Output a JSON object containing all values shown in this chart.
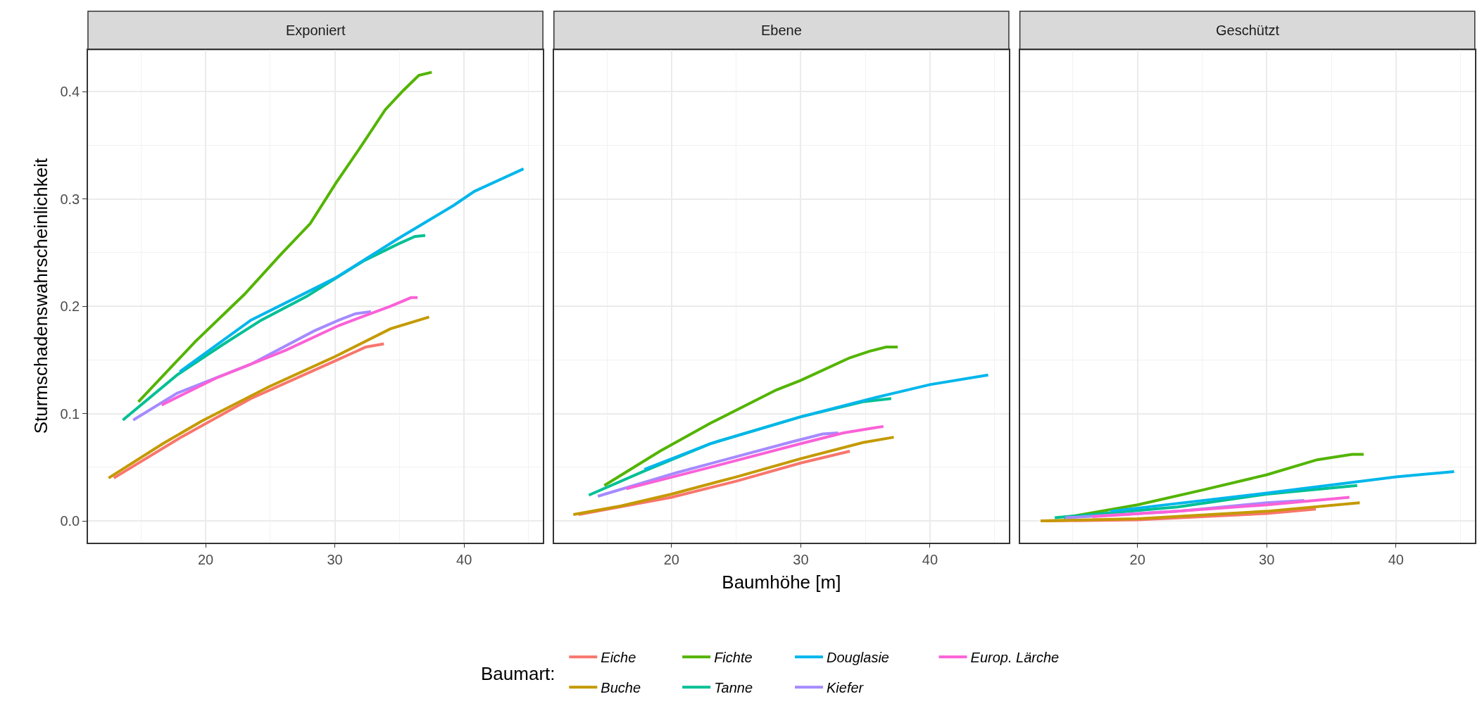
{
  "chart_data": [
    {
      "type": "line",
      "title": "Exponiert",
      "ylabel": "Sturmschadenswahrscheinlichkeit",
      "legend_title": "Baumart:",
      "legend": "bottom",
      "grid": true,
      "xlim": [
        10.9,
        46.1
      ],
      "ylim": [
        -0.02,
        0.439
      ],
      "xticks": [
        20,
        30,
        40
      ],
      "yticks": [
        {
          "value": 0,
          "label": "0.0"
        },
        0.1,
        0.2,
        0.3,
        0.4
      ],
      "line_style": "solid",
      "series": [
        {
          "name": "Eiche",
          "color": "#f8766d",
          "x": [
            12.9,
            18.1,
            23.5,
            30.0,
            32.4,
            33.8
          ],
          "values": [
            0.04,
            0.078,
            0.114,
            0.149,
            0.162,
            0.165
          ]
        },
        {
          "name": "Buche",
          "color": "#c49a00",
          "x": [
            12.5,
            16.7,
            19.7,
            24.9,
            30.0,
            34.3,
            37.3
          ],
          "values": [
            0.04,
            0.072,
            0.093,
            0.125,
            0.153,
            0.179,
            0.19
          ]
        },
        {
          "name": "Fichte",
          "color": "#53b400",
          "x": [
            14.8,
            19.2,
            23.0,
            25.8,
            28.1,
            30.1,
            32.2,
            33.9,
            35.3,
            36.5,
            37.5
          ],
          "values": [
            0.111,
            0.167,
            0.211,
            0.248,
            0.277,
            0.315,
            0.352,
            0.383,
            0.401,
            0.415,
            0.418
          ]
        },
        {
          "name": "Tanne",
          "color": "#00c094",
          "x": [
            13.6,
            17.8,
            21.3,
            24.3,
            27.8,
            32.2,
            34.9,
            36.2,
            37.0
          ],
          "values": [
            0.094,
            0.136,
            0.164,
            0.187,
            0.209,
            0.242,
            0.258,
            0.265,
            0.266
          ]
        },
        {
          "name": "Douglasie",
          "color": "#00b6eb",
          "x": [
            18.0,
            23.5,
            30.0,
            34.9,
            39.2,
            40.8,
            44.6
          ],
          "values": [
            0.139,
            0.187,
            0.226,
            0.263,
            0.294,
            0.307,
            0.328
          ]
        },
        {
          "name": "Kiefer",
          "color": "#a58aff",
          "x": [
            14.4,
            17.8,
            23.5,
            28.4,
            30.3,
            31.6,
            32.8
          ],
          "values": [
            0.094,
            0.119,
            0.146,
            0.177,
            0.187,
            0.193,
            0.195
          ]
        },
        {
          "name": "Europ. Lärche",
          "color": "#fb61d7",
          "x": [
            16.6,
            20.8,
            26.2,
            30.3,
            34.3,
            35.9,
            36.4
          ],
          "values": [
            0.108,
            0.133,
            0.159,
            0.182,
            0.2,
            0.208,
            0.208
          ]
        }
      ]
    },
    {
      "type": "line",
      "title": "Ebene",
      "xlabel": "Baumhöhe [m]",
      "grid": true,
      "tick_labels": "x",
      "xlim": [
        10.9,
        46.1
      ],
      "ylim": [
        -0.02,
        0.439
      ],
      "xticks": [
        20,
        30,
        40
      ],
      "yticks": [
        0,
        0.1,
        0.2,
        0.3,
        0.4
      ],
      "line_style": "solid",
      "series": [
        {
          "color": "#f8766d",
          "x": [
            12.8,
            20.0,
            25.0,
            30.0,
            33.8
          ],
          "values": [
            0.006,
            0.022,
            0.037,
            0.054,
            0.065
          ]
        },
        {
          "color": "#c49a00",
          "x": [
            12.4,
            16.1,
            20.0,
            25.0,
            30.0,
            34.8,
            37.2
          ],
          "values": [
            0.006,
            0.014,
            0.025,
            0.041,
            0.058,
            0.073,
            0.078
          ]
        },
        {
          "color": "#53b400",
          "x": [
            14.8,
            19.1,
            23.0,
            28.1,
            30.0,
            33.8,
            35.3,
            36.6,
            37.5
          ],
          "values": [
            0.033,
            0.065,
            0.091,
            0.122,
            0.131,
            0.152,
            0.158,
            0.162,
            0.162
          ]
        },
        {
          "color": "#00c094",
          "x": [
            13.6,
            17.8,
            23.0,
            30.0,
            34.8,
            37.0
          ],
          "values": [
            0.024,
            0.046,
            0.072,
            0.097,
            0.111,
            0.114
          ]
        },
        {
          "color": "#00b6eb",
          "x": [
            17.9,
            23.0,
            30.0,
            35.8,
            40.0,
            44.5
          ],
          "values": [
            0.048,
            0.072,
            0.097,
            0.115,
            0.127,
            0.136
          ]
        },
        {
          "color": "#a58aff",
          "x": [
            14.3,
            20.4,
            29.4,
            31.7,
            32.9
          ],
          "values": [
            0.023,
            0.045,
            0.074,
            0.081,
            0.082
          ]
        },
        {
          "color": "#fb61d7",
          "x": [
            16.5,
            23.0,
            30.0,
            33.3,
            35.8,
            36.4
          ],
          "values": [
            0.03,
            0.05,
            0.072,
            0.082,
            0.087,
            0.088
          ]
        }
      ]
    },
    {
      "type": "line",
      "title": "Geschützt",
      "grid": true,
      "tick_labels": "x",
      "xlim": [
        10.9,
        46.1
      ],
      "ylim": [
        -0.02,
        0.439
      ],
      "xticks": [
        20,
        30,
        40
      ],
      "yticks": [
        0,
        0.1,
        0.2,
        0.3,
        0.4
      ],
      "line_style": "solid",
      "series": [
        {
          "color": "#f8766d",
          "x": [
            12.8,
            20.0,
            30.0,
            33.8
          ],
          "values": [
            0.0,
            0.001,
            0.007,
            0.011
          ]
        },
        {
          "color": "#c49a00",
          "x": [
            12.5,
            20.0,
            30.0,
            37.2
          ],
          "values": [
            0.0,
            0.002,
            0.009,
            0.017
          ]
        },
        {
          "color": "#53b400",
          "x": [
            14.3,
            20.0,
            25.1,
            30.0,
            33.9,
            36.6,
            37.5
          ],
          "values": [
            0.003,
            0.015,
            0.029,
            0.043,
            0.057,
            0.062,
            0.062
          ]
        },
        {
          "color": "#00c094",
          "x": [
            13.6,
            23.1,
            30.0,
            37.0
          ],
          "values": [
            0.003,
            0.013,
            0.025,
            0.033
          ]
        },
        {
          "color": "#00b6eb",
          "x": [
            17.9,
            30.0,
            40.0,
            44.5
          ],
          "values": [
            0.009,
            0.026,
            0.041,
            0.046
          ]
        },
        {
          "color": "#a58aff",
          "x": [
            14.4,
            23.1,
            30.0,
            32.9
          ],
          "values": [
            0.003,
            0.009,
            0.017,
            0.019
          ]
        },
        {
          "color": "#fb61d7",
          "x": [
            16.5,
            23.1,
            30.0,
            36.4
          ],
          "values": [
            0.004,
            0.009,
            0.015,
            0.022
          ]
        }
      ]
    }
  ]
}
